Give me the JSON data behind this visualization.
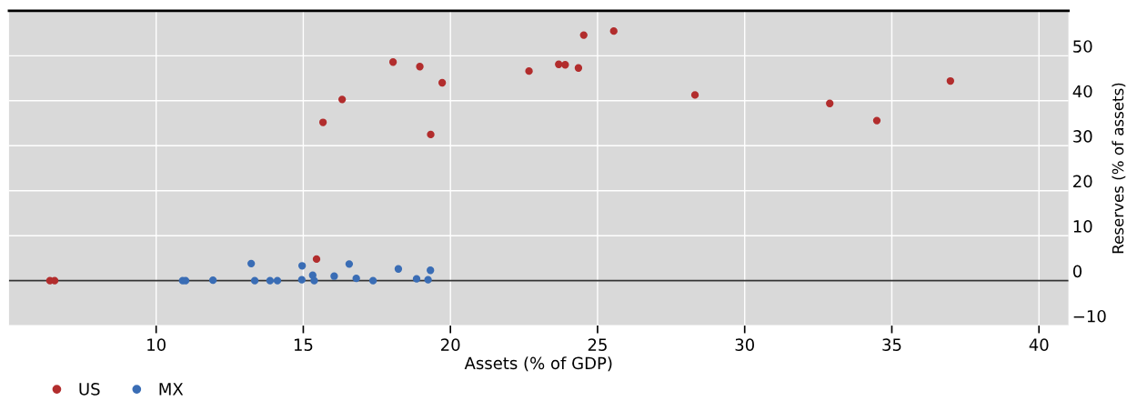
{
  "chart_data": {
    "type": "scatter",
    "xlabel": "Assets (% of GDP)",
    "ylabel": "Reserves (% of assets)",
    "xlim": [
      5,
      41
    ],
    "xticks": [
      10,
      15,
      20,
      25,
      30,
      35,
      40
    ],
    "ylim": [
      -10,
      60
    ],
    "yticks": [
      {
        "value": -10,
        "label": "−10"
      },
      0,
      10,
      20,
      30,
      40,
      50
    ],
    "grid": true,
    "legend": "bottom",
    "marker": "circle",
    "ref_lines": [
      {
        "axis": "y",
        "value": 0,
        "label": null,
        "color": "#333333"
      }
    ],
    "series": [
      {
        "name": "US",
        "color": "#b22d2d",
        "x": [
          6.39,
          6.55,
          18.05,
          18.96,
          19.72,
          16.32,
          15.67,
          19.33,
          15.45,
          22.67,
          23.68,
          23.9,
          24.35,
          24.53,
          25.55,
          28.31,
          32.89,
          34.49,
          36.99
        ],
        "values": [
          0,
          0,
          48.6,
          47.6,
          44.0,
          40.3,
          35.2,
          32.5,
          4.8,
          46.6,
          48.1,
          48.0,
          47.3,
          54.6,
          55.5,
          41.3,
          39.4,
          35.6,
          44.4
        ]
      },
      {
        "name": "MX",
        "color": "#3a6db5",
        "x": [
          10.9,
          11.0,
          11.93,
          13.23,
          13.35,
          13.87,
          14.12,
          14.96,
          14.95,
          15.32,
          15.37,
          16.05,
          16.56,
          16.8,
          17.37,
          18.23,
          18.85,
          19.24,
          19.32
        ],
        "values": [
          0,
          0,
          0.1,
          3.8,
          0,
          0,
          0,
          3.3,
          0.2,
          1.2,
          0,
          1.0,
          3.7,
          0.5,
          0,
          2.6,
          0.4,
          0.2,
          2.3
        ]
      }
    ]
  }
}
